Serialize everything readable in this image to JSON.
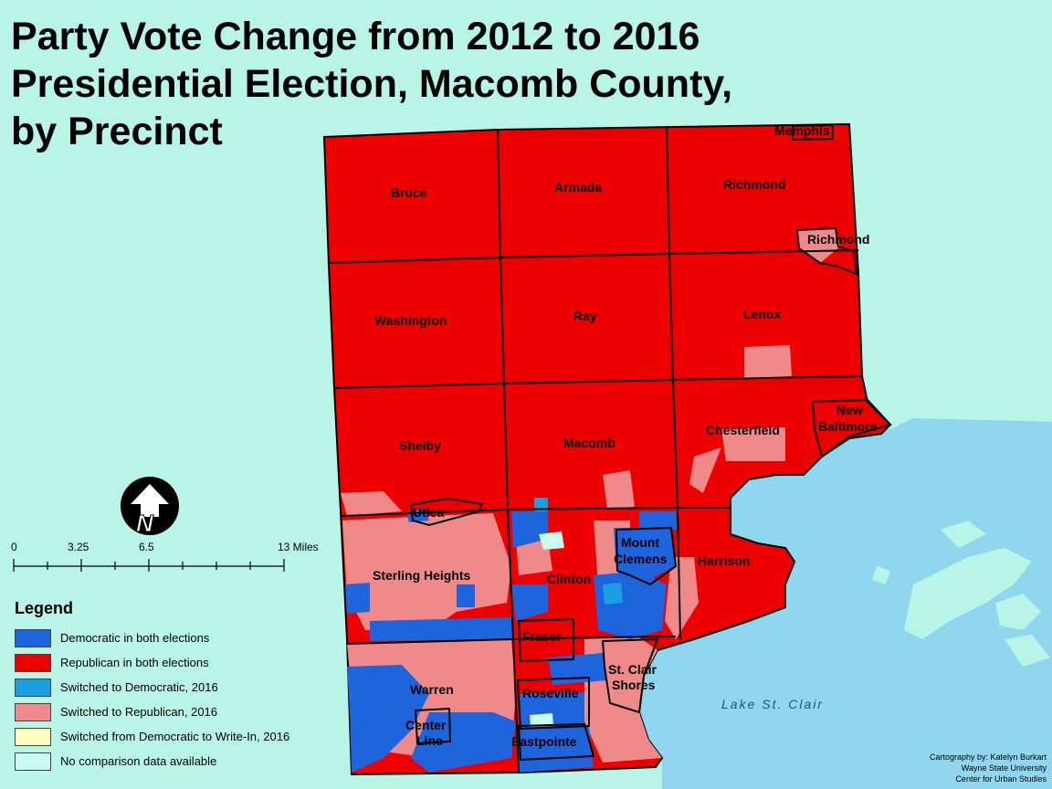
{
  "title_lines": [
    "Party Vote Change from 2012 to 2016",
    "Presidential Election, Macomb County,",
    "by Precinct"
  ],
  "colors": {
    "background": "#b8f5e6",
    "lake": "#8fd6ee",
    "dem_both": "#1e64dc",
    "rep_both": "#ee0000",
    "switched_dem": "#1aa0e0",
    "switched_rep": "#f08a8a",
    "dem_to_writein": "#ffffc0",
    "no_data": "#c8faf0"
  },
  "places": {
    "bruce": "Bruce",
    "armada": "Armada",
    "richmond_twp": "Richmond",
    "memphis": "Memphis",
    "richmond_city": "Richmond",
    "washington": "Washington",
    "ray": "Ray",
    "lenox": "Lenox",
    "shelby": "Shelby",
    "macomb": "Macomb",
    "chesterfield": "Chesterfield",
    "new_baltimore_1": "New",
    "new_baltimore_2": "Baltimore",
    "utica": "Utica",
    "mount_clemens_1": "Mount",
    "mount_clemens_2": "Clemens",
    "harrison": "Harrison",
    "sterling_heights": "Sterling Heights",
    "clinton": "Clinton",
    "fraser": "Fraser",
    "warren": "Warren",
    "roseville": "Roseville",
    "st_clair_shores_1": "St. Clair",
    "st_clair_shores_2": "Shores",
    "center_line_1": "Center",
    "center_line_2": "Line",
    "eastpointe": "Eastpointe"
  },
  "lake_label": "Lake St. Clair",
  "north_arrow": {
    "icon": "north-arrow-icon",
    "letter": "N"
  },
  "scale_bar": {
    "ticks": [
      "0",
      "3.25",
      "6.5",
      "13 Miles"
    ]
  },
  "legend": {
    "heading": "Legend",
    "items": [
      {
        "label": "Democratic in both elections",
        "color": "#1e64dc"
      },
      {
        "label": "Republican in both elections",
        "color": "#ee0000"
      },
      {
        "label": "Switched to Democratic, 2016",
        "color": "#1aa0e0"
      },
      {
        "label": "Switched to Republican, 2016",
        "color": "#f08a8a"
      },
      {
        "label": "Switched from Democratic to Write-In, 2016",
        "color": "#ffffc0"
      },
      {
        "label": "No comparison data available",
        "color": "#c8faf0"
      }
    ]
  },
  "credits": [
    "Cartography by: Katelyn Burkart",
    "Wayne State University",
    "Center for Urban Studies"
  ]
}
